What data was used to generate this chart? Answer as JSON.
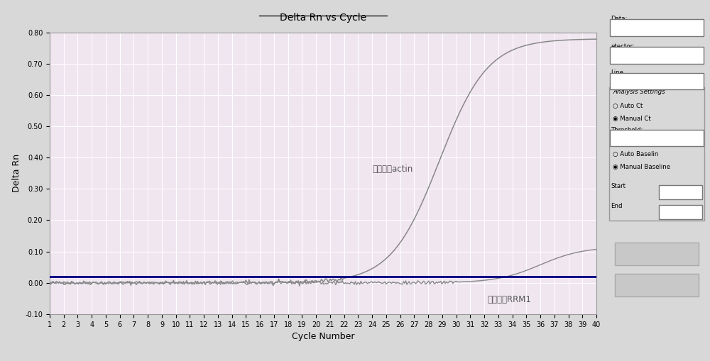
{
  "title": "Delta Rn vs Cycle",
  "xlabel": "Cycle Number",
  "ylabel": "Delta Rn",
  "ylim": [
    -0.1,
    0.8
  ],
  "xlim": [
    1,
    40
  ],
  "yticks": [
    -0.1,
    0.0,
    0.1,
    0.2,
    0.3,
    0.4,
    0.5,
    0.6,
    0.7,
    0.8
  ],
  "xticks": [
    1,
    2,
    3,
    4,
    5,
    6,
    7,
    8,
    9,
    10,
    11,
    12,
    13,
    14,
    15,
    16,
    17,
    18,
    19,
    20,
    21,
    22,
    23,
    24,
    25,
    26,
    27,
    28,
    29,
    30,
    31,
    32,
    33,
    34,
    35,
    36,
    37,
    38,
    39,
    40
  ],
  "threshold": 0.02,
  "bg_color": "#d8d8d8",
  "plot_bg_color": "#f0e6f0",
  "grid_color": "#ffffff",
  "actin_label": "内参基因actin",
  "rrm1_label": "目的基因RRM1",
  "actin_color": "#888888",
  "rrm1_color": "#888888",
  "threshold_color": "#000080",
  "sidebar_bg": "#d8d8d8",
  "title_fontsize": 10,
  "axis_label_fontsize": 9,
  "tick_fontsize": 7,
  "annotation_fontsize": 8.5
}
